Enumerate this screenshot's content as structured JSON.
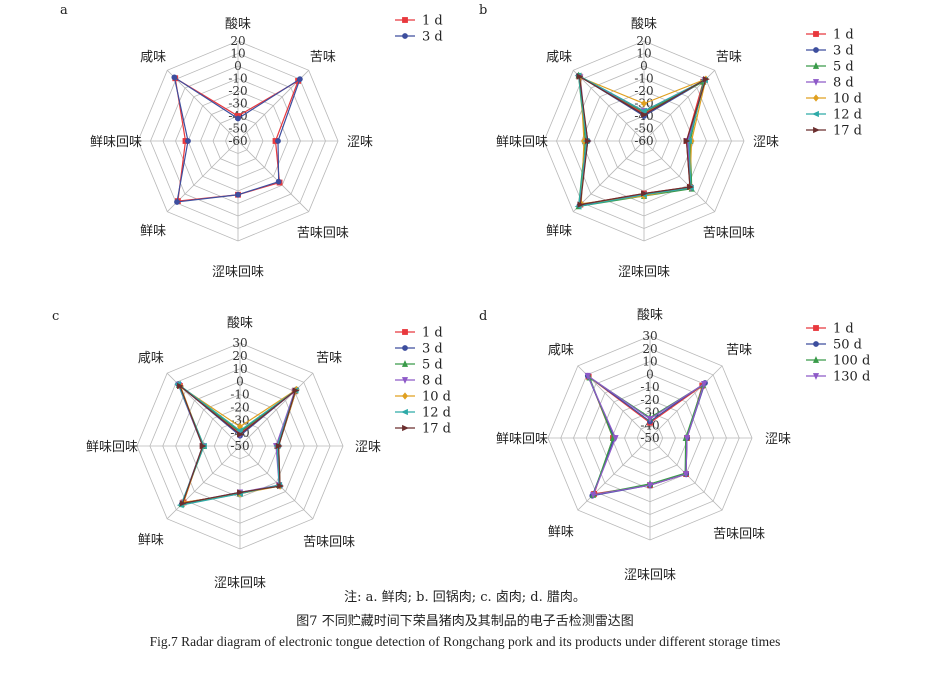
{
  "captions": {
    "note": "注: a. 鲜肉; b. 回锅肉; c. 卤肉; d. 腊肉。",
    "cn": "图7 不同贮藏时间下荣昌猪肉及其制品的电子舌检测雷达图",
    "en": "Fig.7 Radar diagram of electronic tongue detection of Rongchang pork and its products under different storage times"
  },
  "chart_data": [
    {
      "type": "radar",
      "panel_label": "a",
      "axes": [
        "酸味",
        "苦味",
        "涩味",
        "苦味回味",
        "涩味回味",
        "鲜味",
        "鲜味回味",
        "咸味"
      ],
      "rlim": [
        -60,
        20
      ],
      "ticks": [
        20,
        10,
        0,
        -10,
        -20,
        -30,
        -40,
        -50,
        -60
      ],
      "grid": true,
      "legend_position": "top-right",
      "series": [
        {
          "name": "1 d",
          "color": "#e8383d",
          "marker": "square",
          "values": [
            -40,
            8,
            -30,
            -13,
            -17,
            8,
            -18,
            11
          ]
        },
        {
          "name": "3 d",
          "color": "#3d4e9e",
          "marker": "circle",
          "values": [
            -42,
            10,
            -28,
            -14,
            -17,
            9,
            -20,
            12
          ]
        }
      ]
    },
    {
      "type": "radar",
      "panel_label": "b",
      "axes": [
        "酸味",
        "苦味",
        "涩味",
        "苦味回味",
        "涩味回味",
        "鲜味",
        "鲜味回味",
        "咸味"
      ],
      "rlim": [
        -60,
        20
      ],
      "ticks": [
        20,
        10,
        0,
        -10,
        -20,
        -30,
        -40,
        -50,
        -60
      ],
      "grid": true,
      "legend_position": "top-right",
      "series": [
        {
          "name": "1 d",
          "color": "#e8383d",
          "marker": "square",
          "values": [
            -38,
            7,
            -26,
            -8,
            -18,
            12,
            -14,
            13
          ]
        },
        {
          "name": "3 d",
          "color": "#3d4e9e",
          "marker": "circle",
          "values": [
            -40,
            8,
            -24,
            -7,
            -17,
            13,
            -15,
            14
          ]
        },
        {
          "name": "5 d",
          "color": "#3a9b4a",
          "marker": "triangle-up",
          "values": [
            -37,
            7,
            -23,
            -6,
            -16,
            14,
            -13,
            14
          ]
        },
        {
          "name": "8 d",
          "color": "#8e5ac8",
          "marker": "triangle-down",
          "values": [
            -36,
            9,
            -25,
            -7,
            -17,
            12,
            -14,
            12
          ]
        },
        {
          "name": "10 d",
          "color": "#e0a020",
          "marker": "diamond",
          "values": [
            -30,
            10,
            -22,
            -8,
            -16,
            11,
            -12,
            12
          ]
        },
        {
          "name": "12 d",
          "color": "#2eaaa8",
          "marker": "triangle-left",
          "values": [
            -36,
            9,
            -24,
            -7,
            -17,
            14,
            -14,
            14
          ]
        },
        {
          "name": "17 d",
          "color": "#6b2e2e",
          "marker": "triangle-right",
          "values": [
            -39,
            10,
            -26,
            -8,
            -18,
            12,
            -15,
            13
          ]
        }
      ]
    },
    {
      "type": "radar",
      "panel_label": "c",
      "axes": [
        "酸味",
        "苦味",
        "涩味",
        "苦味回味",
        "涩味回味",
        "鲜味",
        "鲜味回味",
        "咸味"
      ],
      "rlim": [
        -50,
        30
      ],
      "ticks": [
        30,
        20,
        10,
        0,
        -10,
        -20,
        -30,
        -40,
        -50
      ],
      "grid": true,
      "legend_position": "top-right",
      "series": [
        {
          "name": "1 d",
          "color": "#e8383d",
          "marker": "square",
          "values": [
            -40,
            10,
            -21,
            -7,
            -13,
            12,
            -21,
            16
          ]
        },
        {
          "name": "3 d",
          "color": "#3d4e9e",
          "marker": "circle",
          "values": [
            -42,
            12,
            -20,
            -6,
            -14,
            14,
            -21,
            18
          ]
        },
        {
          "name": "5 d",
          "color": "#3a9b4a",
          "marker": "triangle-up",
          "values": [
            -39,
            11,
            -21,
            -7,
            -13,
            14,
            -22,
            17
          ]
        },
        {
          "name": "8 d",
          "color": "#8e5ac8",
          "marker": "triangle-down",
          "values": [
            -41,
            10,
            -22,
            -7,
            -14,
            13,
            -21,
            17
          ]
        },
        {
          "name": "10 d",
          "color": "#e0a020",
          "marker": "diamond",
          "values": [
            -35,
            12,
            -20,
            -6,
            -13,
            12,
            -21,
            15
          ]
        },
        {
          "name": "12 d",
          "color": "#2eaaa8",
          "marker": "triangle-left",
          "values": [
            -38,
            11,
            -21,
            -7,
            -13,
            15,
            -22,
            18
          ]
        },
        {
          "name": "17 d",
          "color": "#6b2e2e",
          "marker": "triangle-right",
          "values": [
            -41,
            11,
            -20,
            -6,
            -14,
            13,
            -21,
            16
          ]
        }
      ]
    },
    {
      "type": "radar",
      "panel_label": "d",
      "axes": [
        "酸味",
        "苦味",
        "涩味",
        "苦味回味",
        "涩味回味",
        "鲜味",
        "鲜味回味",
        "咸味"
      ],
      "rlim": [
        -50,
        30
      ],
      "ticks": [
        30,
        20,
        10,
        0,
        -10,
        -20,
        -30,
        -40,
        -50
      ],
      "grid": true,
      "legend_position": "top-right",
      "series": [
        {
          "name": "1 d",
          "color": "#e8383d",
          "marker": "square",
          "values": [
            -38,
            8,
            -21,
            -10,
            -13,
            12,
            -21,
            18
          ]
        },
        {
          "name": "50 d",
          "color": "#3d4e9e",
          "marker": "circle",
          "values": [
            -37,
            11,
            -21,
            -10,
            -13,
            14,
            -22,
            19
          ]
        },
        {
          "name": "100 d",
          "color": "#3a9b4a",
          "marker": "triangle-up",
          "values": [
            -34,
            9,
            -22,
            -11,
            -14,
            13,
            -21,
            17
          ]
        },
        {
          "name": "130 d",
          "color": "#8e5ac8",
          "marker": "triangle-down",
          "values": [
            -35,
            10,
            -21,
            -10,
            -13,
            13,
            -23,
            19
          ]
        }
      ]
    }
  ]
}
